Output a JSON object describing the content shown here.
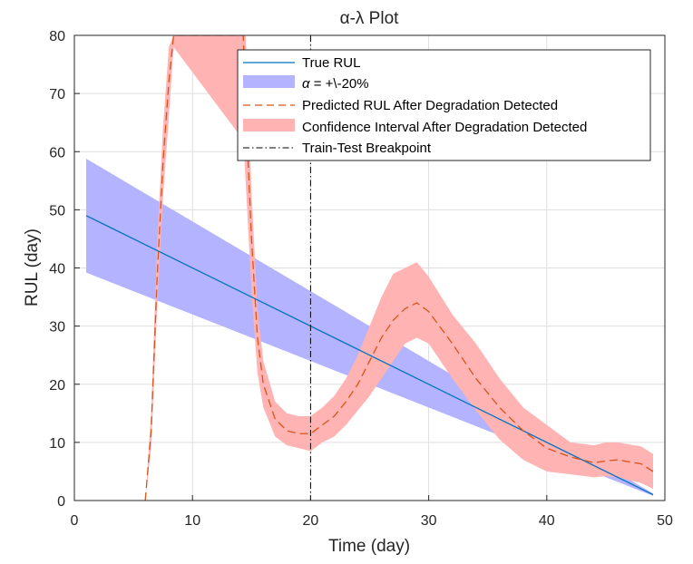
{
  "chart_data": {
    "type": "line",
    "title": "α-λ Plot",
    "xlabel": "Time (day)",
    "ylabel": "RUL (day)",
    "xlim": [
      0,
      50
    ],
    "ylim": [
      0,
      80
    ],
    "xticks": [
      0,
      10,
      20,
      30,
      40,
      50
    ],
    "yticks": [
      0,
      10,
      20,
      30,
      40,
      50,
      60,
      70,
      80
    ],
    "grid": true,
    "legend_position": "top-right",
    "legend": [
      {
        "label": "True RUL",
        "style": "line",
        "color": "#0072BD"
      },
      {
        "label_prefix": "α",
        "label_suffix": " = +\\-20%",
        "style": "patch",
        "color": "#b3b3ff"
      },
      {
        "label": "Predicted RUL After Degradation Detected",
        "style": "dashed",
        "color": "#D95319"
      },
      {
        "label": "Confidence Interval After Degradation Detected",
        "style": "patch",
        "color": "#ffb3b3"
      },
      {
        "label": "Train-Test Breakpoint",
        "style": "dashdot",
        "color": "#000000"
      }
    ],
    "series": [
      {
        "name": "True RUL",
        "type": "line",
        "color": "#0072BD",
        "x": [
          1,
          49
        ],
        "y": [
          49,
          1
        ]
      },
      {
        "name": "α = +\\-20%",
        "type": "band",
        "color": "#b3b3ff",
        "x": [
          1,
          49
        ],
        "lower": [
          39.2,
          0.8
        ],
        "upper": [
          58.8,
          1.2
        ]
      },
      {
        "name": "Predicted RUL After Degradation Detected",
        "type": "line",
        "style": "dashed",
        "color": "#D95319",
        "x": [
          6,
          6.5,
          7,
          7.5,
          8,
          8.4,
          14.3,
          14.5,
          15,
          15.5,
          16,
          17,
          18,
          19,
          20,
          21,
          22,
          23,
          24,
          25,
          26,
          27,
          28,
          29,
          30,
          32,
          34,
          36,
          38,
          40,
          42,
          44,
          45,
          46,
          48,
          49
        ],
        "y": [
          0,
          12,
          38,
          58,
          72,
          80,
          80,
          68,
          45,
          28,
          20,
          14,
          12,
          11.5,
          11.5,
          13,
          14.5,
          17,
          20,
          24,
          28,
          31,
          33,
          34,
          32.5,
          27,
          21,
          16,
          12,
          9,
          7.5,
          6.5,
          6.8,
          7,
          6.3,
          5
        ]
      },
      {
        "name": "Confidence Interval After Degradation Detected",
        "type": "band",
        "color": "#ffb3b3",
        "x": [
          6,
          6.5,
          7,
          7.5,
          8,
          8.4,
          14.3,
          14.5,
          15,
          15.5,
          16,
          17,
          18,
          19,
          20,
          21,
          22,
          23,
          24,
          25,
          26,
          27,
          28,
          29,
          30,
          32,
          34,
          36,
          38,
          40,
          42,
          44,
          45,
          46,
          48,
          49
        ],
        "lower": [
          0,
          9,
          33,
          52,
          66,
          78,
          62,
          55,
          36,
          22,
          16,
          11,
          9.5,
          9,
          8.5,
          10,
          11,
          13,
          15.5,
          18,
          21,
          24,
          27,
          28,
          27,
          21,
          15.5,
          10.5,
          7,
          5,
          4.5,
          4,
          4.2,
          4,
          3,
          2
        ],
        "upper": [
          0,
          15,
          44,
          64,
          78,
          80,
          80,
          80,
          53,
          33,
          24,
          17,
          15,
          14.5,
          14.5,
          16,
          18,
          21,
          25,
          30,
          35,
          39,
          40,
          41,
          38.5,
          32,
          27,
          21,
          16,
          13,
          10,
          9.5,
          10,
          10,
          9.3,
          8
        ]
      },
      {
        "name": "Train-Test Breakpoint",
        "type": "vline",
        "style": "dashdot",
        "color": "#000000",
        "x": 20
      }
    ]
  }
}
